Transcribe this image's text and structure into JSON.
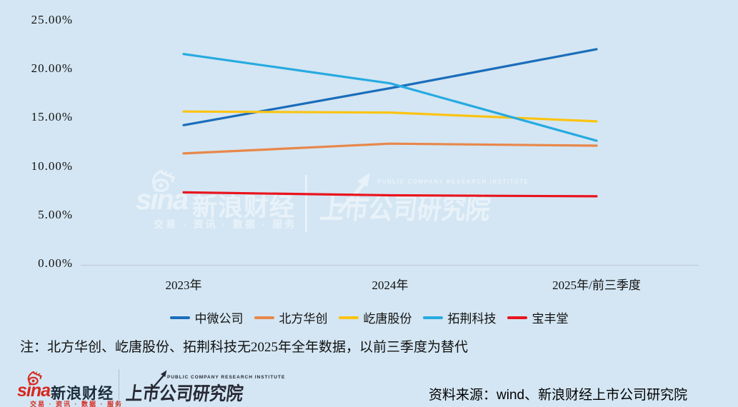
{
  "chart_data": {
    "type": "line",
    "title": "",
    "xlabel": "",
    "ylabel": "",
    "unit": "percent",
    "grid": false,
    "legend_position": "bottom",
    "ylim": [
      0,
      25
    ],
    "categories": [
      "2023年",
      "2024年",
      "2025年/前三季度"
    ],
    "yticks": [
      {
        "value": 0,
        "label": "0.00%"
      },
      {
        "value": 5,
        "label": "5.00%"
      },
      {
        "value": 10,
        "label": "10.00%"
      },
      {
        "value": 15,
        "label": "15.00%"
      },
      {
        "value": 20,
        "label": "20.00%"
      },
      {
        "value": 25,
        "label": "25.00%"
      }
    ],
    "series": [
      {
        "name": "中微公司",
        "color": "#1b6dbb",
        "values": [
          14.2,
          18.0,
          22.0
        ]
      },
      {
        "name": "北方华创",
        "color": "#e8874a",
        "values": [
          11.3,
          12.3,
          12.1
        ]
      },
      {
        "name": "屹唐股份",
        "color": "#fbc311",
        "values": [
          15.6,
          15.5,
          14.6
        ]
      },
      {
        "name": "拓荆科技",
        "color": "#27aae1",
        "values": [
          21.5,
          18.5,
          12.6
        ]
      },
      {
        "name": "宝丰堂",
        "color": "#e9141d",
        "values": [
          7.3,
          7.0,
          6.9
        ]
      }
    ]
  },
  "note": "注：北方华创、屹唐股份、拓荆科技无2025年全年数据，以前三季度为替代",
  "watermark": {
    "sina_wordmark": "sina",
    "brand": "新浪财经",
    "tagline": "交易 · 资讯 · 数据 · 服务",
    "institute": "上市公司研究院",
    "institute_en": "PUBLIC COMPANY RESEARCH INSTITUTE"
  },
  "footer": {
    "sina_wordmark": "sina",
    "brand": "新浪财经",
    "tagline": "交易 · 资讯 · 数据 · 服务",
    "institute": "上市公司研究院",
    "institute_en": "PUBLIC COMPANY RESEARCH INSTITUTE",
    "source": "资料来源：wind、新浪财经上市公司研究院"
  },
  "colors": {
    "background": "#d4e6f3",
    "axis_line": "#c3ccd6",
    "text": "#111111",
    "sina_red": "#d7281f",
    "footer_dark": "#272935"
  }
}
